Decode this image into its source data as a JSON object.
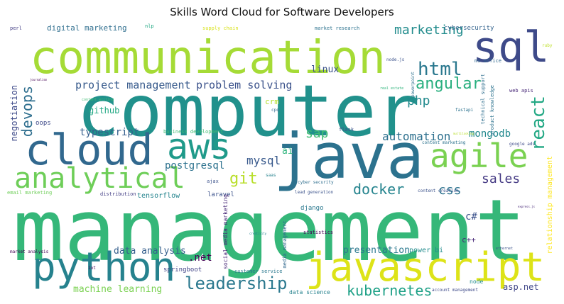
{
  "chart_data": {
    "type": "wordcloud",
    "title": "Skills Word Cloud for Software Developers",
    "colormap": "viridis",
    "words": [
      {
        "text": "management",
        "weight": 100,
        "color": "#35b779"
      },
      {
        "text": "computer",
        "weight": 98,
        "color": "#21918c"
      },
      {
        "text": "java",
        "weight": 80,
        "color": "#2c728e"
      },
      {
        "text": "communication",
        "weight": 62,
        "color": "#a5db36"
      },
      {
        "text": "cloud",
        "weight": 55,
        "color": "#31688e"
      },
      {
        "text": "javascript",
        "weight": 52,
        "color": "#dde318"
      },
      {
        "text": "python",
        "weight": 50,
        "color": "#26828e"
      },
      {
        "text": "sql",
        "weight": 48,
        "color": "#3e4a89"
      },
      {
        "text": "aws",
        "weight": 44,
        "color": "#1f9a8a"
      },
      {
        "text": "agile",
        "weight": 42,
        "color": "#7ad151"
      },
      {
        "text": "analytical",
        "weight": 38,
        "color": "#6ece58"
      },
      {
        "text": "leadership",
        "weight": 22,
        "color": "#2a788e"
      },
      {
        "text": "react",
        "weight": 22,
        "color": "#22a884"
      },
      {
        "text": "html",
        "weight": 20,
        "color": "#2a788e"
      },
      {
        "text": "angular",
        "weight": 18,
        "color": "#29af7f"
      },
      {
        "text": "git",
        "weight": 18,
        "color": "#b8de29"
      },
      {
        "text": "kubernetes",
        "weight": 18,
        "color": "#1fa187"
      },
      {
        "text": "docker",
        "weight": 17,
        "color": "#25848e"
      },
      {
        "text": "devops",
        "weight": 17,
        "color": "#2e6e8e"
      },
      {
        "text": "marketing",
        "weight": 15,
        "color": "#228c8d"
      },
      {
        "text": "project management",
        "weight": 15,
        "color": "#375a8c"
      },
      {
        "text": "problem solving",
        "weight": 15,
        "color": "#3b528b"
      },
      {
        "text": "php",
        "weight": 15,
        "color": "#238a8d"
      },
      {
        "text": "sales",
        "weight": 15,
        "color": "#443983"
      },
      {
        "text": "css",
        "weight": 15,
        "color": "#2c728e"
      },
      {
        "text": "sap",
        "weight": 15,
        "color": "#3fbc73"
      },
      {
        "text": "automation",
        "weight": 14,
        "color": "#2d708e"
      },
      {
        "text": "mysql",
        "weight": 13,
        "color": "#38598c"
      },
      {
        "text": "mongodb",
        "weight": 12,
        "color": "#23898e"
      },
      {
        "text": "typescript",
        "weight": 12,
        "color": "#355f8d"
      },
      {
        "text": "postgresql",
        "weight": 12,
        "color": "#2c728e"
      },
      {
        "text": "presentation",
        "weight": 12,
        "color": "#2a788e"
      },
      {
        "text": "machine learning",
        "weight": 12,
        "color": "#7ad151"
      },
      {
        "text": "data analysis",
        "weight": 11,
        "color": "#355f8d"
      },
      {
        "text": ".net",
        "weight": 11,
        "color": "#440154"
      },
      {
        "text": "linux",
        "weight": 11,
        "color": "#3b528b"
      },
      {
        "text": "github",
        "weight": 10,
        "color": "#22a884"
      },
      {
        "text": "negotiation",
        "weight": 10,
        "color": "#3e4a89"
      },
      {
        "text": "ai",
        "weight": 10,
        "color": "#2fb47c"
      },
      {
        "text": "asp.net",
        "weight": 10,
        "color": "#404688"
      },
      {
        "text": "c#",
        "weight": 10,
        "color": "#3b528b"
      },
      {
        "text": "crm",
        "weight": 9,
        "color": "#b5de2b"
      },
      {
        "text": "relationship management",
        "weight": 8,
        "color": "#fde725"
      },
      {
        "text": "digital marketing",
        "weight": 8,
        "color": "#2e6e8e"
      },
      {
        "text": "cybersecurity",
        "weight": 7,
        "color": "#33638d"
      },
      {
        "text": "power bi",
        "weight": 7,
        "color": "#228c8d"
      },
      {
        "text": "c++",
        "weight": 7,
        "color": "#482878"
      },
      {
        "text": "tensorflow",
        "weight": 7,
        "color": "#25848e"
      },
      {
        "text": "springboot",
        "weight": 6,
        "color": "#414487"
      },
      {
        "text": "django",
        "weight": 6,
        "color": "#2a788e"
      },
      {
        "text": "oops",
        "weight": 6,
        "color": "#3e4a89"
      },
      {
        "text": "laravel",
        "weight": 6,
        "color": "#3b528b"
      },
      {
        "text": "market research",
        "weight": 5,
        "color": "#2c728e"
      },
      {
        "text": "business development",
        "weight": 5,
        "color": "#3fbc73"
      },
      {
        "text": "social media marketing",
        "weight": 5,
        "color": "#482878"
      },
      {
        "text": "ms office",
        "weight": 5,
        "color": "#31688e"
      },
      {
        "text": "supply chain",
        "weight": 5,
        "color": "#d8e219"
      },
      {
        "text": "flask",
        "weight": 5,
        "color": "#3b528b"
      },
      {
        "text": "ajax",
        "weight": 5,
        "color": "#3b528b"
      },
      {
        "text": "customer service",
        "weight": 5,
        "color": "#2a788e"
      },
      {
        "text": "data science",
        "weight": 5,
        "color": "#26828e"
      },
      {
        "text": "node",
        "weight": 5,
        "color": "#228c8d"
      },
      {
        "text": "web apis",
        "weight": 5,
        "color": "#482878"
      },
      {
        "text": "technical support",
        "weight": 5,
        "color": "#2e6e8e"
      },
      {
        "text": "product knowledge",
        "weight": 5,
        "color": "#2c728e"
      },
      {
        "text": "media management",
        "weight": 5,
        "color": "#31688e"
      },
      {
        "text": "perl",
        "weight": 5,
        "color": "#433e85"
      },
      {
        "text": "nlp",
        "weight": 5,
        "color": "#22a884"
      },
      {
        "text": "statistics",
        "weight": 5,
        "color": "#440154"
      },
      {
        "text": "distribution",
        "weight": 5,
        "color": "#433e85"
      },
      {
        "text": "email marketing",
        "weight": 5,
        "color": "#6ece58"
      },
      {
        "text": "lead generation",
        "weight": 4,
        "color": "#3b528b"
      },
      {
        "text": "content creation",
        "weight": 4,
        "color": "#3b528b"
      },
      {
        "text": "cyber security",
        "weight": 4,
        "color": "#2e6e8e"
      },
      {
        "text": "market analysis",
        "weight": 4,
        "color": "#440154"
      },
      {
        "text": "account management",
        "weight": 4,
        "color": "#3e4a89"
      },
      {
        "text": "content marketing",
        "weight": 4,
        "color": "#2c728e"
      },
      {
        "text": "google ads",
        "weight": 4,
        "color": "#3e4a89"
      },
      {
        "text": "saas",
        "weight": 4,
        "color": "#26828e"
      },
      {
        "text": "cpq",
        "weight": 4,
        "color": "#31688e"
      },
      {
        "text": "fastapi",
        "weight": 4,
        "color": "#2c728e"
      },
      {
        "text": "iot",
        "weight": 4,
        "color": "#440154"
      },
      {
        "text": "ruby",
        "weight": 4,
        "color": "#bddf26"
      },
      {
        "text": "node.js",
        "weight": 4,
        "color": "#3b528b"
      },
      {
        "text": "powerpoint",
        "weight": 4,
        "color": "#2c728e"
      },
      {
        "text": "ethernet",
        "weight": 3,
        "color": "#3b528b"
      },
      {
        "text": "content writing",
        "weight": 3,
        "color": "#3fbc73"
      },
      {
        "text": "real estate",
        "weight": 3,
        "color": "#2fb47c"
      },
      {
        "text": "journalism",
        "weight": 3,
        "color": "#440154"
      },
      {
        "text": "express.js",
        "weight": 3,
        "color": "#482878"
      },
      {
        "text": "multitasking",
        "weight": 3,
        "color": "#b8de29"
      },
      {
        "text": "creativity",
        "weight": 2,
        "color": "#26828e"
      }
    ]
  }
}
